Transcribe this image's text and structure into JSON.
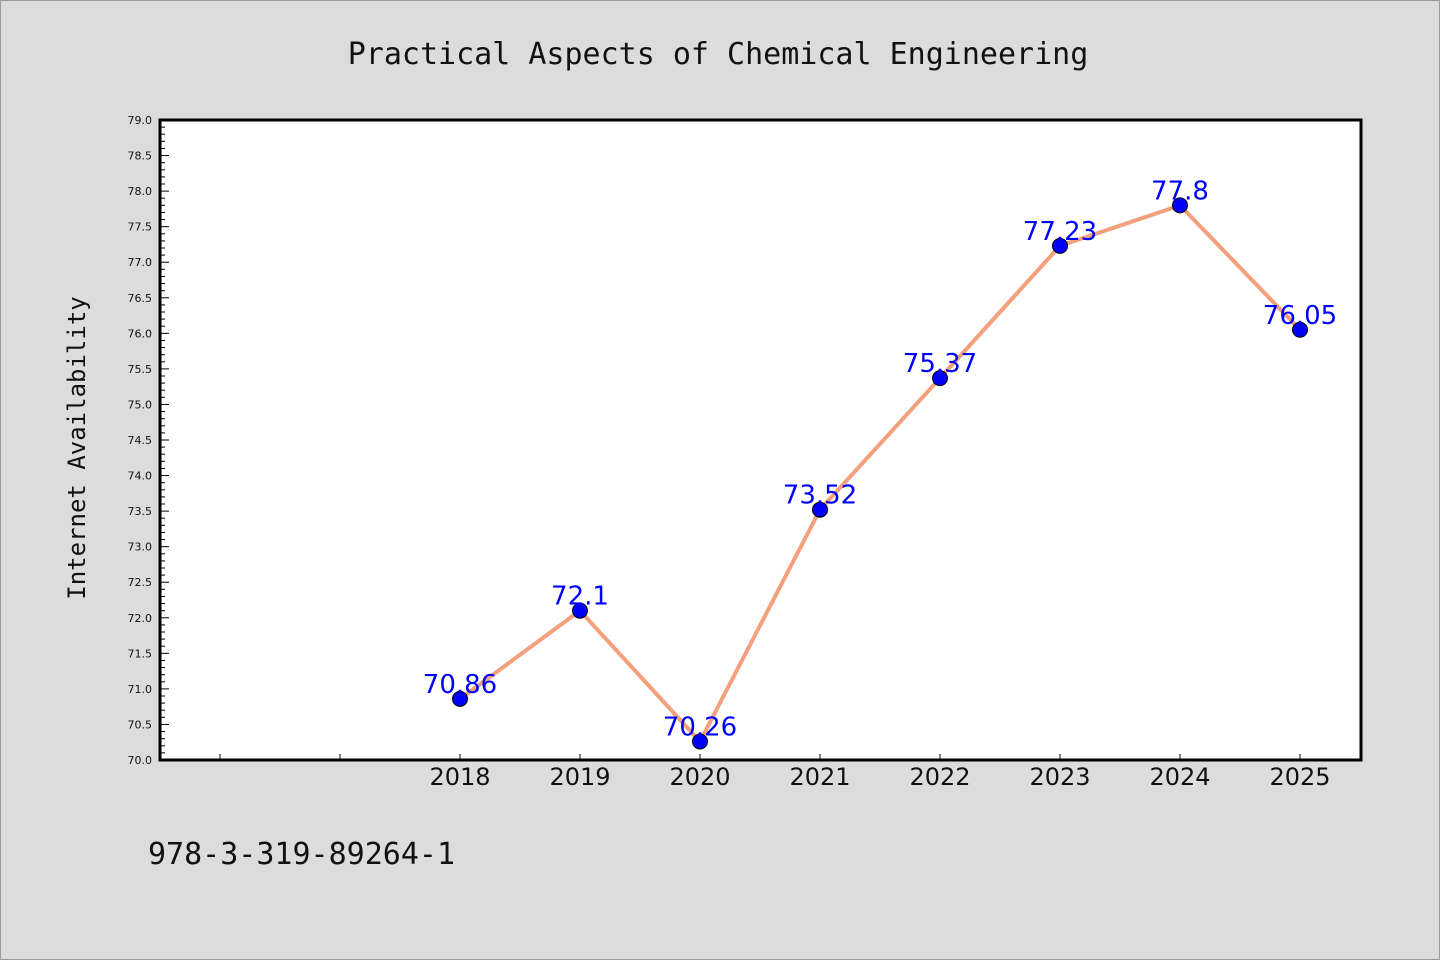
{
  "chart_data": {
    "type": "line",
    "title": "Practical Aspects of Chemical Engineering",
    "xlabel": "",
    "ylabel": "Internet Availability",
    "x": [
      "2018",
      "2019",
      "2020",
      "2021",
      "2022",
      "2023",
      "2024",
      "2025"
    ],
    "series": [
      {
        "values": [
          70.86,
          72.1,
          70.26,
          73.52,
          75.37,
          77.23,
          77.8,
          76.05
        ],
        "data_labels": [
          "70.86",
          "72.1",
          "70.26",
          "73.52",
          "75.37",
          "77.23",
          "77.8",
          "76.05"
        ]
      }
    ],
    "ylim": [
      70.0,
      79.0
    ],
    "ytick_labels": [
      "70.0",
      "70.5",
      "71.0",
      "71.5",
      "72.0",
      "72.5",
      "73.0",
      "73.5",
      "74.0",
      "74.5",
      "75.0",
      "75.5",
      "76.0",
      "76.5",
      "77.0",
      "77.5",
      "78.0",
      "78.5",
      "79.0"
    ],
    "grid": false,
    "legend": "none",
    "colors": {
      "line": "#f4a07c",
      "marker": "#0000ff",
      "label": "#0000ff",
      "background": "#dcdcdc",
      "plot_area": "#ffffff"
    }
  },
  "footer": {
    "isbn": "978-3-319-89264-1"
  }
}
